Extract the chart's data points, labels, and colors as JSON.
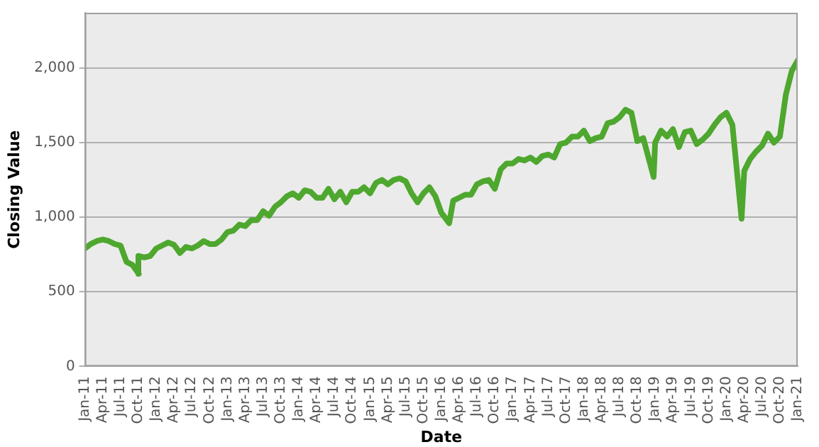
{
  "chart_data": {
    "type": "line",
    "xlabel": "Date",
    "ylabel": "Closing Value",
    "x": [
      "2011-01",
      "2011-02",
      "2011-03",
      "2011-04",
      "2011-05",
      "2011-06",
      "2011-07",
      "2011-08",
      "2011-09",
      "2011-10-03",
      "2011-10",
      "2011-11",
      "2011-12",
      "2012-01",
      "2012-02",
      "2012-03",
      "2012-04",
      "2012-05",
      "2012-06",
      "2012-07",
      "2012-08",
      "2012-09",
      "2012-10",
      "2012-11",
      "2012-12",
      "2013-01",
      "2013-02",
      "2013-03",
      "2013-04",
      "2013-05",
      "2013-06",
      "2013-07",
      "2013-08",
      "2013-09",
      "2013-10",
      "2013-11",
      "2013-12",
      "2014-01",
      "2014-02",
      "2014-03",
      "2014-04",
      "2014-05",
      "2014-06",
      "2014-07",
      "2014-08",
      "2014-09",
      "2014-10",
      "2014-11",
      "2014-12",
      "2015-01",
      "2015-02",
      "2015-03",
      "2015-04",
      "2015-05",
      "2015-06",
      "2015-07",
      "2015-08",
      "2015-09",
      "2015-10",
      "2015-11",
      "2015-12",
      "2016-01",
      "2016-02-11",
      "2016-03",
      "2016-04",
      "2016-05",
      "2016-06",
      "2016-07",
      "2016-08",
      "2016-09",
      "2016-10",
      "2016-11",
      "2016-12",
      "2017-01",
      "2017-02",
      "2017-03",
      "2017-04",
      "2017-05",
      "2017-06",
      "2017-07",
      "2017-08",
      "2017-09",
      "2017-10",
      "2017-11",
      "2017-12",
      "2018-01",
      "2018-02",
      "2018-03",
      "2018-04",
      "2018-05",
      "2018-06",
      "2018-07",
      "2018-08",
      "2018-09",
      "2018-10",
      "2018-11",
      "2018-12-24",
      "2019-01",
      "2019-02",
      "2019-03",
      "2019-04",
      "2019-05",
      "2019-06",
      "2019-07",
      "2019-08",
      "2019-09",
      "2019-10",
      "2019-11",
      "2019-12",
      "2020-01",
      "2020-02",
      "2020-03-18",
      "2020-04",
      "2020-05",
      "2020-06",
      "2020-07",
      "2020-08",
      "2020-09",
      "2020-10",
      "2020-11",
      "2020-12",
      "2021-01"
    ],
    "series": [
      {
        "color": "#4ea72e",
        "values": [
          790,
          820,
          840,
          850,
          840,
          820,
          810,
          700,
          680,
          620,
          740,
          730,
          740,
          790,
          810,
          830,
          815,
          760,
          800,
          790,
          810,
          840,
          820,
          820,
          850,
          900,
          910,
          950,
          940,
          980,
          980,
          1040,
          1010,
          1070,
          1100,
          1140,
          1160,
          1130,
          1180,
          1170,
          1130,
          1130,
          1190,
          1120,
          1170,
          1100,
          1170,
          1170,
          1200,
          1160,
          1230,
          1250,
          1220,
          1250,
          1260,
          1240,
          1160,
          1100,
          1160,
          1200,
          1140,
          1030,
          960,
          1110,
          1130,
          1150,
          1150,
          1220,
          1240,
          1250,
          1190,
          1320,
          1360,
          1360,
          1390,
          1380,
          1400,
          1370,
          1410,
          1420,
          1400,
          1490,
          1500,
          1540,
          1540,
          1580,
          1510,
          1530,
          1540,
          1630,
          1640,
          1670,
          1720,
          1700,
          1510,
          1530,
          1270,
          1500,
          1580,
          1540,
          1590,
          1470,
          1570,
          1580,
          1490,
          1520,
          1560,
          1620,
          1670,
          1700,
          1620,
          990,
          1310,
          1390,
          1440,
          1480,
          1560,
          1500,
          1540,
          1820,
          1980,
          2050
        ]
      }
    ],
    "xlim": [
      "2011-01",
      "2021-01"
    ],
    "xticks": [
      {
        "value": "2011-01",
        "label": "Jan-11"
      },
      {
        "value": "2011-04",
        "label": "Apr-11"
      },
      {
        "value": "2011-07",
        "label": "Jul-11"
      },
      {
        "value": "2011-10",
        "label": "Oct-11"
      },
      {
        "value": "2012-01",
        "label": "Jan-12"
      },
      {
        "value": "2012-04",
        "label": "Apr-12"
      },
      {
        "value": "2012-07",
        "label": "Jul-12"
      },
      {
        "value": "2012-10",
        "label": "Oct-12"
      },
      {
        "value": "2013-01",
        "label": "Jan-13"
      },
      {
        "value": "2013-04",
        "label": "Apr-13"
      },
      {
        "value": "2013-07",
        "label": "Jul-13"
      },
      {
        "value": "2013-10",
        "label": "Oct-13"
      },
      {
        "value": "2014-01",
        "label": "Jan-14"
      },
      {
        "value": "2014-04",
        "label": "Apr-14"
      },
      {
        "value": "2014-07",
        "label": "Jul-14"
      },
      {
        "value": "2014-10",
        "label": "Oct-14"
      },
      {
        "value": "2015-01",
        "label": "Jan-15"
      },
      {
        "value": "2015-04",
        "label": "Apr-15"
      },
      {
        "value": "2015-07",
        "label": "Jul-15"
      },
      {
        "value": "2015-10",
        "label": "Oct-15"
      },
      {
        "value": "2016-01",
        "label": "Jan-16"
      },
      {
        "value": "2016-04",
        "label": "Apr-16"
      },
      {
        "value": "2016-07",
        "label": "Jul-16"
      },
      {
        "value": "2016-10",
        "label": "Oct-16"
      },
      {
        "value": "2017-01",
        "label": "Jan-17"
      },
      {
        "value": "2017-04",
        "label": "Apr-17"
      },
      {
        "value": "2017-07",
        "label": "Jul-17"
      },
      {
        "value": "2017-10",
        "label": "Oct-17"
      },
      {
        "value": "2018-01",
        "label": "Jan-18"
      },
      {
        "value": "2018-04",
        "label": "Apr-18"
      },
      {
        "value": "2018-07",
        "label": "Jul-18"
      },
      {
        "value": "2018-10",
        "label": "Oct-18"
      },
      {
        "value": "2019-01",
        "label": "Jan-19"
      },
      {
        "value": "2019-04",
        "label": "Apr-19"
      },
      {
        "value": "2019-07",
        "label": "Jul-19"
      },
      {
        "value": "2019-10",
        "label": "Oct-19"
      },
      {
        "value": "2020-01",
        "label": "Jan-20"
      },
      {
        "value": "2020-04",
        "label": "Apr-20"
      },
      {
        "value": "2020-07",
        "label": "Jul-20"
      },
      {
        "value": "2020-10",
        "label": "Oct-20"
      },
      {
        "value": "2021-01",
        "label": "Jan-21"
      }
    ],
    "ylim": [
      0,
      2370
    ],
    "yticks": [
      0,
      500,
      {
        "value": 1000,
        "label": "1,000"
      },
      {
        "value": 1500,
        "label": "1,500"
      },
      {
        "value": 2000,
        "label": "2,000"
      }
    ],
    "grid": "y",
    "marker": "none",
    "line_style": "solid"
  }
}
